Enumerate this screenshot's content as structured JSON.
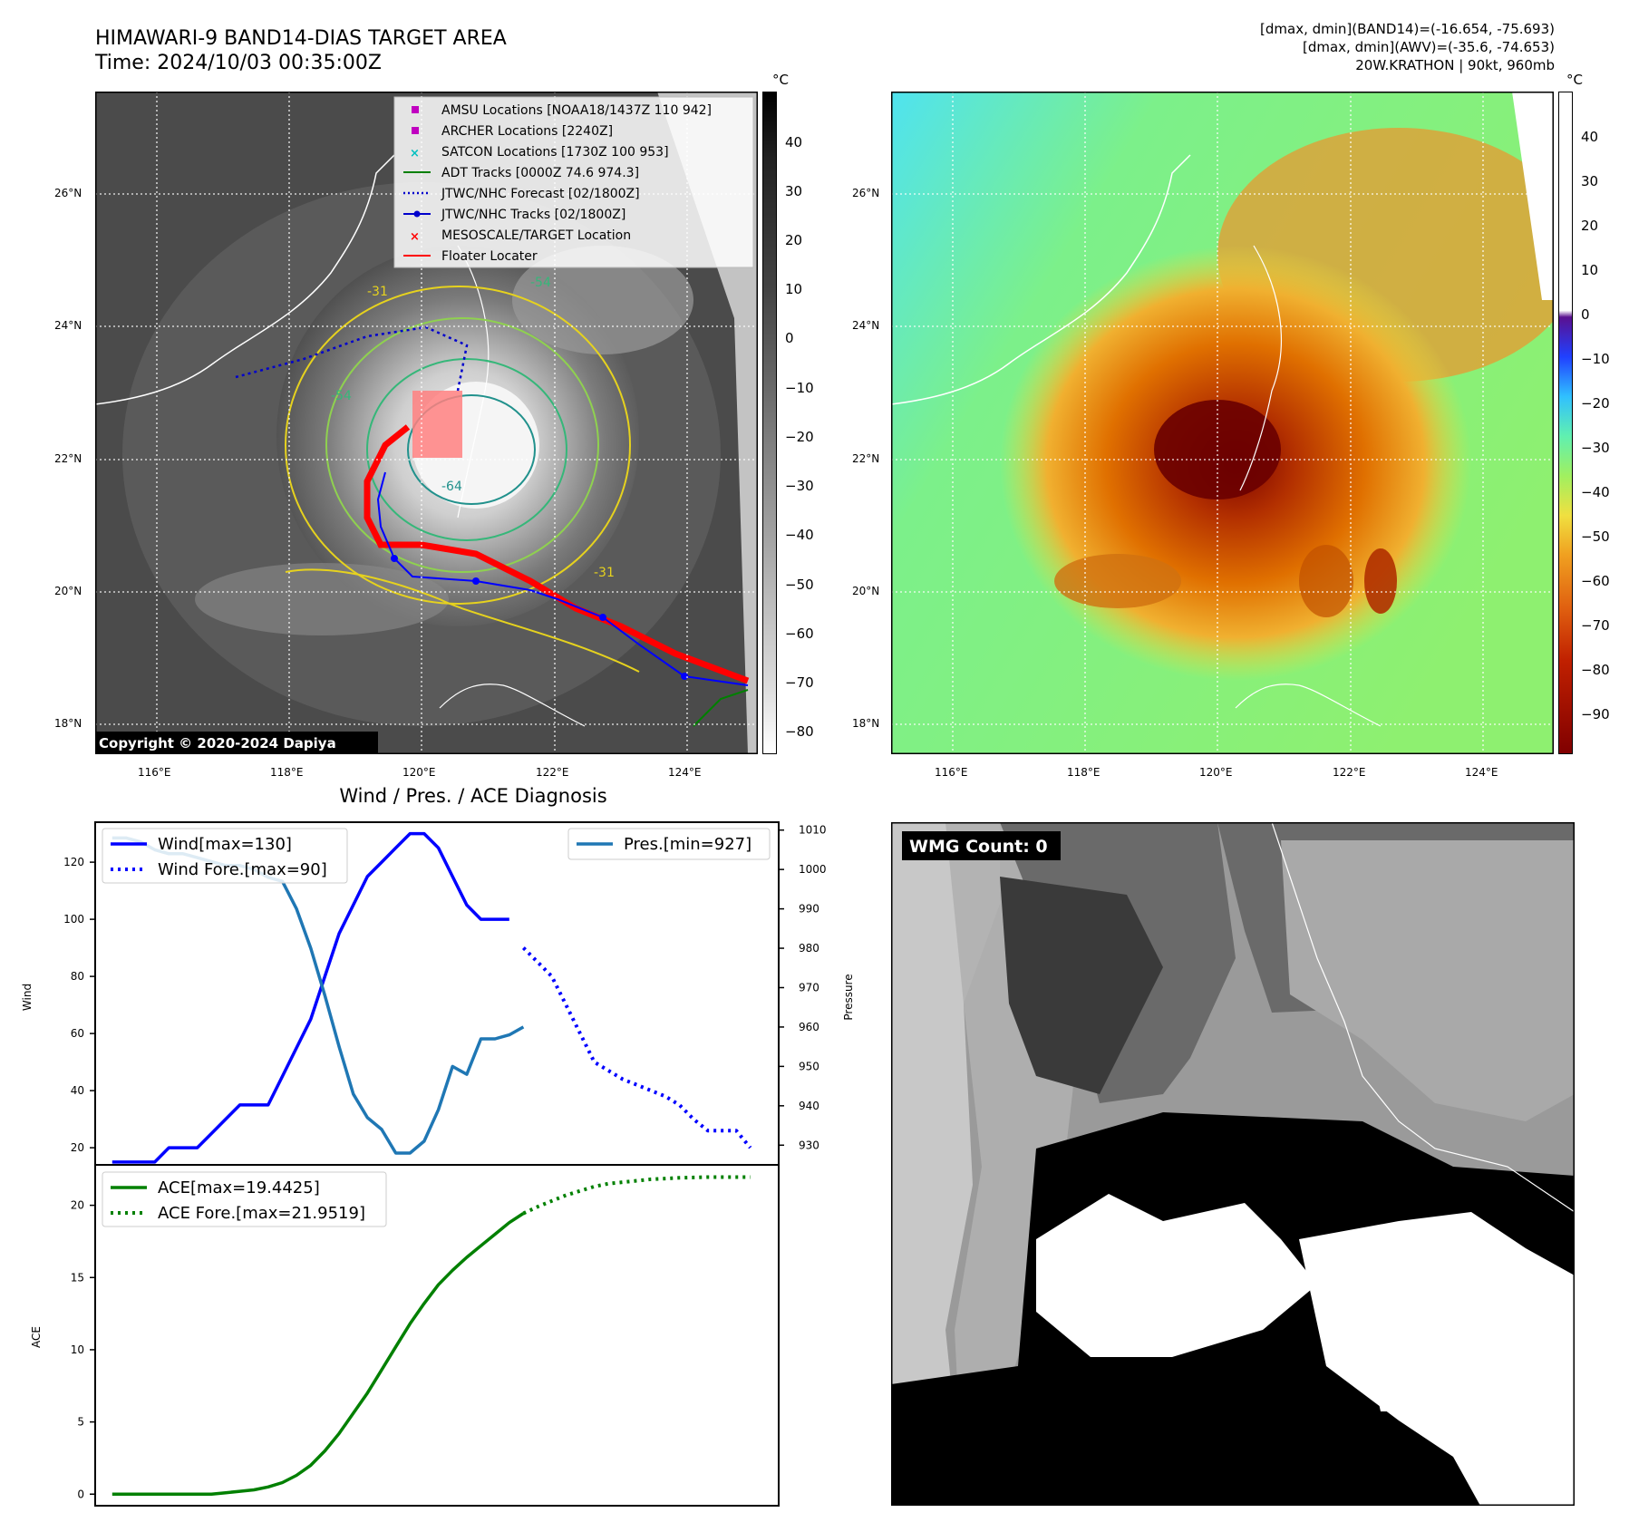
{
  "top_left": {
    "title_line1": "HIMAWARI-9 BAND14-DIAS TARGET AREA",
    "title_line2": "Time: 2024/10/03 00:35:00Z",
    "unit": "°C",
    "copyright": "Copyright © 2020-2024 Dapiya",
    "legend": [
      {
        "label": "AMSU Locations [NOAA18/1437Z 110 942]",
        "marker": "square",
        "color": "#c000c0"
      },
      {
        "label": "ARCHER Locations [2240Z]",
        "marker": "square",
        "color": "#c000c0"
      },
      {
        "label": "SATCON Locations [1730Z 100 953]",
        "marker": "x",
        "color": "#00c0c0"
      },
      {
        "label": "ADT Tracks [0000Z 74.6 974.3]",
        "marker": "line",
        "color": "#008000"
      },
      {
        "label": "JTWC/NHC Forecast [02/1800Z]",
        "marker": "dotted",
        "color": "#0000cc"
      },
      {
        "label": "JTWC/NHC Tracks [02/1800Z]",
        "marker": "line-dot",
        "color": "#0000cc"
      },
      {
        "label": "MESOSCALE/TARGET Location",
        "marker": "x",
        "color": "#ff0000"
      },
      {
        "label": "Floater Locater",
        "marker": "line",
        "color": "#ff0000"
      }
    ],
    "contour_labels": [
      "-64",
      "-54",
      "-31",
      "-31",
      "-54"
    ],
    "colorbar_ticks": [
      "40",
      "30",
      "20",
      "10",
      "0",
      "−10",
      "−20",
      "−30",
      "−40",
      "−50",
      "−60",
      "−70",
      "−80"
    ]
  },
  "top_right": {
    "info_line1": "[dmax, dmin](BAND14)=(-16.654, -75.693)",
    "info_line2": "[dmax, dmin](AWV)=(-35.6, -74.653)",
    "info_line3": "20W.KRATHON | 90kt, 960mb",
    "unit": "°C",
    "colorbar_ticks": [
      "40",
      "30",
      "20",
      "10",
      "0",
      "−10",
      "−20",
      "−30",
      "−40",
      "−50",
      "−60",
      "−70",
      "−80",
      "−90"
    ]
  },
  "map_axes": {
    "lon_ticks": [
      "116°E",
      "118°E",
      "120°E",
      "122°E",
      "124°E"
    ],
    "lat_ticks": [
      "26°N",
      "24°N",
      "22°N",
      "20°N",
      "18°N"
    ]
  },
  "bottom_right": {
    "badge": "WMG Count: 0"
  },
  "chart_data": [
    {
      "type": "line",
      "title": "Wind / Pres. / ACE Diagnosis",
      "ylabel": "Wind",
      "y2label": "Pressure",
      "ylim": [
        14,
        134
      ],
      "y2lim": [
        925,
        1012
      ],
      "yticks": [
        20,
        40,
        60,
        80,
        100,
        120
      ],
      "y2ticks": [
        930,
        940,
        950,
        960,
        970,
        980,
        990,
        1000,
        1010
      ],
      "legend_left": [
        "Wind[max=130]",
        "Wind Fore.[max=90]"
      ],
      "legend_right": [
        "Pres.[min=927]"
      ],
      "series": [
        {
          "name": "Wind[max=130]",
          "style": "solid",
          "color": "#0000ff",
          "x": [
            0,
            1,
            2,
            3,
            4,
            5,
            6,
            7,
            8,
            9,
            10,
            11,
            12,
            13,
            14,
            15,
            16,
            17,
            18,
            19,
            20,
            21,
            22,
            23,
            24,
            25,
            26,
            27,
            28
          ],
          "values": [
            15,
            15,
            15,
            15,
            20,
            20,
            20,
            25,
            30,
            35,
            35,
            35,
            45,
            55,
            65,
            80,
            95,
            105,
            115,
            120,
            125,
            130,
            130,
            125,
            115,
            105,
            100,
            100,
            100
          ]
        },
        {
          "name": "Wind Fore.[max=90]",
          "style": "dotted",
          "color": "#0000ff",
          "x": [
            29,
            30,
            31,
            32,
            33,
            34,
            35,
            36,
            37,
            38,
            39,
            40,
            41,
            42,
            43,
            44,
            45
          ],
          "values": [
            90,
            85,
            80,
            70,
            60,
            50,
            47,
            44,
            42,
            40,
            38,
            35,
            30,
            26,
            26,
            26,
            20
          ]
        },
        {
          "name": "Pres.[min=927]",
          "style": "solid",
          "color": "#1f77b4",
          "axis": "y2",
          "x": [
            0,
            1,
            2,
            3,
            4,
            5,
            6,
            7,
            8,
            9,
            10,
            11,
            12,
            13,
            14,
            15,
            16,
            17,
            18,
            19,
            20,
            21,
            22,
            23,
            24,
            25,
            26,
            27,
            28,
            29
          ],
          "values": [
            1008,
            1008,
            1007,
            1005,
            1004,
            1004,
            1003,
            1002,
            1001,
            1001,
            1000,
            998,
            997,
            990,
            980,
            968,
            955,
            943,
            937,
            934,
            928,
            928,
            931,
            939,
            950,
            948,
            957,
            957,
            958,
            960
          ]
        }
      ]
    },
    {
      "type": "line",
      "ylabel": "ACE",
      "ylim": [
        -0.8,
        22.8
      ],
      "yticks": [
        0,
        5,
        10,
        15,
        20
      ],
      "legend": [
        "ACE[max=19.4425]",
        "ACE Fore.[max=21.9519]"
      ],
      "series": [
        {
          "name": "ACE[max=19.4425]",
          "style": "solid",
          "color": "#008000",
          "x": [
            0,
            1,
            2,
            3,
            4,
            5,
            6,
            7,
            8,
            9,
            10,
            11,
            12,
            13,
            14,
            15,
            16,
            17,
            18,
            19,
            20,
            21,
            22,
            23,
            24,
            25,
            26,
            27,
            28,
            29
          ],
          "values": [
            0,
            0,
            0,
            0,
            0,
            0,
            0,
            0,
            0.1,
            0.2,
            0.3,
            0.5,
            0.8,
            1.3,
            2.0,
            3.0,
            4.2,
            5.6,
            7.0,
            8.6,
            10.2,
            11.8,
            13.2,
            14.5,
            15.5,
            16.4,
            17.2,
            18.0,
            18.8,
            19.44
          ]
        },
        {
          "name": "ACE Fore.[max=21.9519]",
          "style": "dotted",
          "color": "#008000",
          "x": [
            29,
            30,
            31,
            32,
            33,
            34,
            35,
            36,
            37,
            38,
            39,
            40,
            41,
            42,
            43,
            44,
            45
          ],
          "values": [
            19.44,
            19.9,
            20.3,
            20.7,
            21.0,
            21.3,
            21.5,
            21.6,
            21.7,
            21.8,
            21.85,
            21.9,
            21.93,
            21.95,
            21.95,
            21.95,
            21.95
          ]
        }
      ]
    }
  ]
}
